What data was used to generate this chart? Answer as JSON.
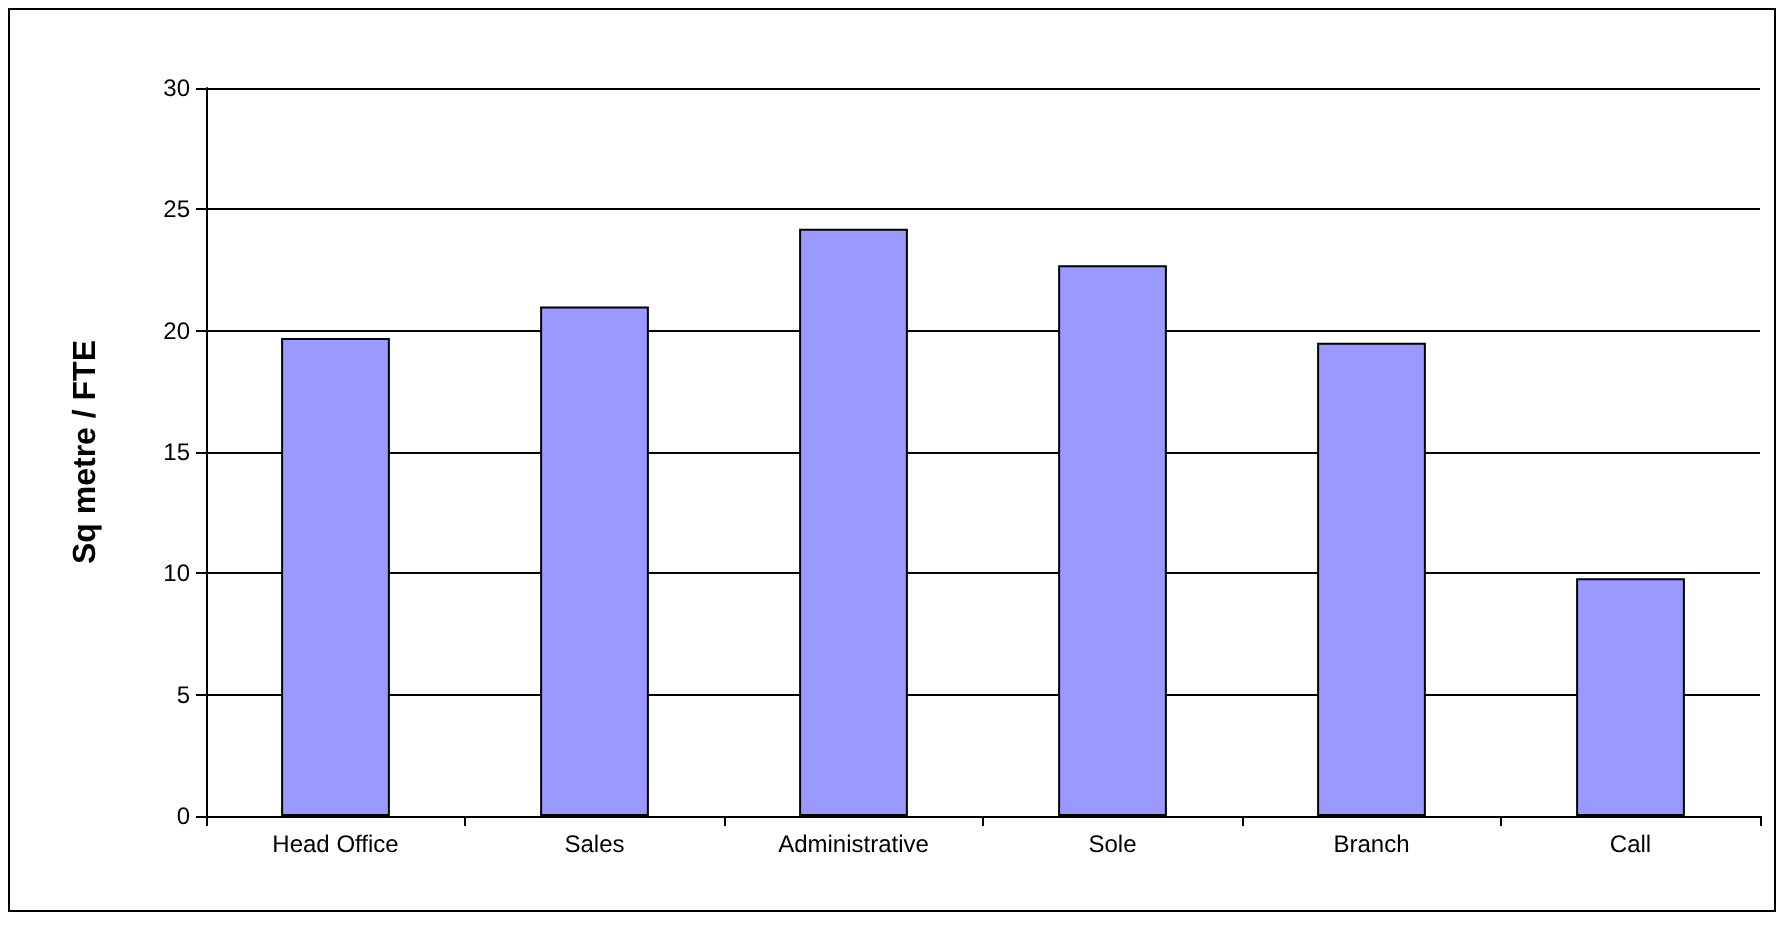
{
  "chart_data": {
    "type": "bar",
    "ylabel": "Sq metre / FTE",
    "categories": [
      "Head Office",
      "Sales",
      "Administrative",
      "Sole",
      "Branch",
      "Call"
    ],
    "values": [
      19.7,
      21.0,
      24.2,
      22.7,
      19.5,
      9.8
    ],
    "color": "#9999ff",
    "ylim": [
      0,
      30
    ],
    "yticks": [
      0,
      5,
      10,
      15,
      20,
      25,
      30
    ],
    "grid": "y"
  }
}
